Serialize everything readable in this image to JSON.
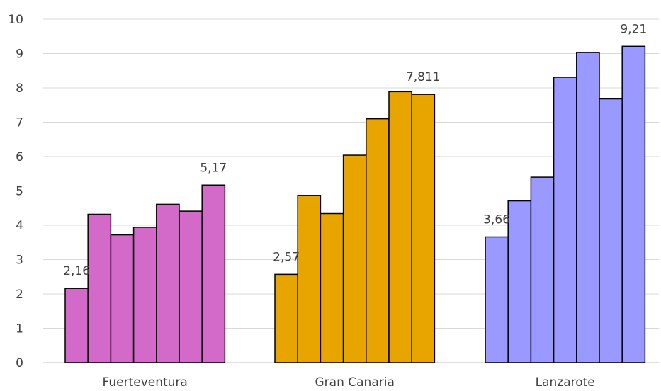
{
  "chart_data": {
    "type": "bar",
    "title": "",
    "xlabel": "",
    "ylabel": "",
    "ylim": [
      0,
      10
    ],
    "yticks": [
      0,
      1,
      2,
      3,
      4,
      5,
      6,
      7,
      8,
      9,
      10
    ],
    "grid": true,
    "legend": "none",
    "groups": [
      {
        "category": "Fuerteventura",
        "color": "#d36ac9",
        "values": [
          2.16,
          4.32,
          3.72,
          3.94,
          4.61,
          4.41,
          5.17
        ],
        "labels": [
          {
            "index": 0,
            "text": "2,16"
          },
          {
            "index": 6,
            "text": "5,17"
          }
        ]
      },
      {
        "category": "Gran Canaria",
        "color": "#e8a500",
        "values": [
          2.57,
          4.87,
          4.34,
          6.04,
          7.1,
          7.89,
          7.811
        ],
        "labels": [
          {
            "index": 0,
            "text": "2,57"
          },
          {
            "index": 6,
            "text": "7,811"
          }
        ]
      },
      {
        "category": "Lanzarote",
        "color": "#9a99ff",
        "values": [
          3.66,
          4.71,
          5.4,
          8.31,
          9.03,
          7.68,
          9.21
        ],
        "labels": [
          {
            "index": 0,
            "text": "3,66"
          },
          {
            "index": 6,
            "text": "9,21"
          }
        ]
      }
    ]
  }
}
